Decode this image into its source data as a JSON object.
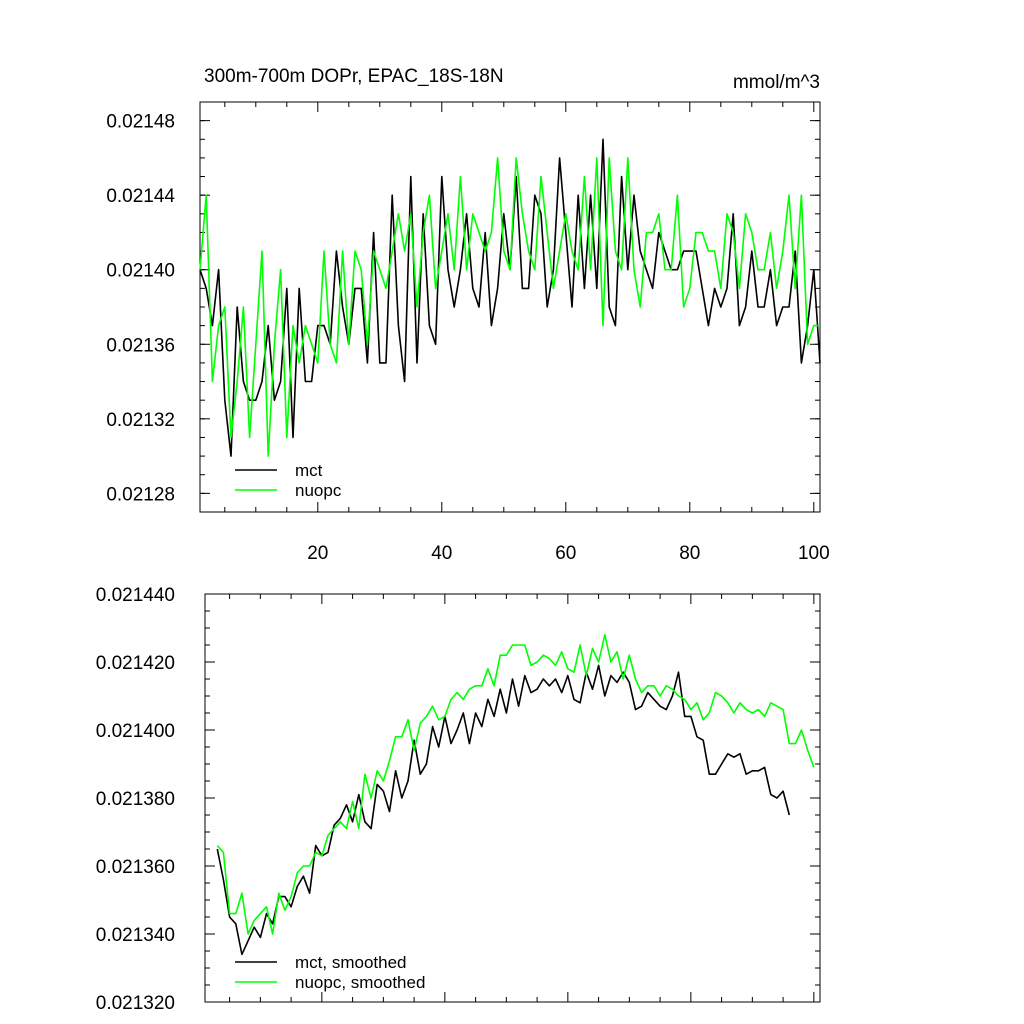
{
  "chart_data": [
    {
      "type": "line",
      "title": "300m-700m DOPr, EPAC_18S-18N",
      "units": "mmol/m^3",
      "xlim": [
        1,
        101
      ],
      "ylim": [
        0.02127,
        0.02149
      ],
      "x_ticks": [
        20,
        40,
        60,
        80,
        100
      ],
      "y_ticks": [
        0.02128,
        0.02132,
        0.02136,
        0.0214,
        0.02144,
        0.02148
      ],
      "y_tick_labels": [
        "0.02128",
        "0.02132",
        "0.02136",
        "0.02140",
        "0.02144",
        "0.02148"
      ],
      "legend_position": "bottom-left",
      "x_start": 1,
      "series": [
        {
          "name": "mct",
          "color": "#000000",
          "values": [
            0.0214,
            0.02139,
            0.02137,
            0.0214,
            0.02133,
            0.0213,
            0.02138,
            0.02134,
            0.02133,
            0.02133,
            0.02134,
            0.02137,
            0.02133,
            0.02134,
            0.02139,
            0.02131,
            0.02139,
            0.02134,
            0.02134,
            0.02137,
            0.02137,
            0.02136,
            0.02141,
            0.02138,
            0.02136,
            0.02139,
            0.02139,
            0.02135,
            0.02142,
            0.02135,
            0.02135,
            0.02144,
            0.02137,
            0.02134,
            0.02145,
            0.02135,
            0.02143,
            0.02137,
            0.02136,
            0.02145,
            0.0214,
            0.02138,
            0.0214,
            0.02143,
            0.02139,
            0.02138,
            0.02142,
            0.02137,
            0.02139,
            0.02143,
            0.0214,
            0.02145,
            0.02139,
            0.02139,
            0.02144,
            0.02143,
            0.02138,
            0.0214,
            0.02146,
            0.02142,
            0.02138,
            0.02144,
            0.02139,
            0.02144,
            0.02139,
            0.02147,
            0.02138,
            0.02137,
            0.02145,
            0.0214,
            0.02144,
            0.02141,
            0.0214,
            0.02139,
            0.02142,
            0.02141,
            0.0214,
            0.0214,
            0.02141,
            0.02141,
            0.02141,
            0.02139,
            0.02137,
            0.02139,
            0.02138,
            0.02139,
            0.02143,
            0.02137,
            0.02138,
            0.02141,
            0.02138,
            0.02138,
            0.0214,
            0.02137,
            0.02138,
            0.02138,
            0.02141,
            0.02135,
            0.02137,
            0.0214,
            0.02135
          ]
        },
        {
          "name": "nuopc",
          "color": "#00ff00",
          "values": [
            0.0214,
            0.02144,
            0.02134,
            0.02137,
            0.02138,
            0.02131,
            0.02134,
            0.02138,
            0.02131,
            0.02136,
            0.02141,
            0.0213,
            0.02136,
            0.0214,
            0.02131,
            0.02137,
            0.02135,
            0.02137,
            0.02136,
            0.02135,
            0.02141,
            0.02136,
            0.02135,
            0.02141,
            0.02136,
            0.02141,
            0.0214,
            0.02136,
            0.02141,
            0.0214,
            0.02139,
            0.02141,
            0.02143,
            0.02141,
            0.02143,
            0.02138,
            0.02142,
            0.02144,
            0.02139,
            0.02141,
            0.02143,
            0.0214,
            0.02145,
            0.0214,
            0.02143,
            0.02142,
            0.02141,
            0.02142,
            0.02146,
            0.02141,
            0.0214,
            0.02146,
            0.02143,
            0.02141,
            0.0214,
            0.02145,
            0.02142,
            0.02139,
            0.02141,
            0.02143,
            0.02141,
            0.0214,
            0.02145,
            0.0214,
            0.02146,
            0.02137,
            0.02146,
            0.02141,
            0.0214,
            0.02146,
            0.0214,
            0.02138,
            0.02142,
            0.02142,
            0.02143,
            0.0214,
            0.0214,
            0.02144,
            0.02138,
            0.02139,
            0.02142,
            0.02142,
            0.02141,
            0.02141,
            0.02139,
            0.02143,
            0.02142,
            0.02139,
            0.02143,
            0.02142,
            0.0214,
            0.0214,
            0.02142,
            0.02139,
            0.02141,
            0.02144,
            0.02139,
            0.02144,
            0.02136,
            0.02137,
            0.02137
          ]
        }
      ]
    },
    {
      "type": "line",
      "title": "",
      "xlim": [
        1,
        101
      ],
      "ylim": [
        0.02132,
        0.02144
      ],
      "y_ticks": [
        0.02132,
        0.02134,
        0.02136,
        0.02138,
        0.0214,
        0.02142,
        0.02144
      ],
      "y_tick_labels": [
        "0.021320",
        "0.021340",
        "0.021360",
        "0.021380",
        "0.021400",
        "0.021420",
        "0.021440"
      ],
      "legend_position": "bottom-left",
      "x_start": 3,
      "series": [
        {
          "name": "mct, smoothed",
          "color": "#000000",
          "values": [
            0.021365,
            0.021356,
            0.021345,
            0.021343,
            0.021334,
            0.021338,
            0.021342,
            0.021339,
            0.021346,
            0.021343,
            0.021351,
            0.021351,
            0.021348,
            0.021354,
            0.021357,
            0.021352,
            0.021366,
            0.021363,
            0.021364,
            0.021372,
            0.021374,
            0.021378,
            0.021373,
            0.021381,
            0.021373,
            0.021371,
            0.021384,
            0.021382,
            0.021376,
            0.021388,
            0.02138,
            0.021385,
            0.021397,
            0.021387,
            0.02139,
            0.021401,
            0.021395,
            0.021404,
            0.021396,
            0.0214,
            0.021405,
            0.021396,
            0.021405,
            0.021401,
            0.021409,
            0.021404,
            0.021412,
            0.021405,
            0.021415,
            0.021407,
            0.021416,
            0.021411,
            0.021412,
            0.021415,
            0.021413,
            0.021415,
            0.021411,
            0.021416,
            0.021409,
            0.021408,
            0.021417,
            0.021412,
            0.021419,
            0.02141,
            0.021416,
            0.021414,
            0.021417,
            0.021414,
            0.021406,
            0.021407,
            0.021411,
            0.021409,
            0.021407,
            0.021406,
            0.02141,
            0.021417,
            0.021404,
            0.021404,
            0.021398,
            0.021397,
            0.021387,
            0.021387,
            0.02139,
            0.021393,
            0.021392,
            0.021393,
            0.021387,
            0.021388,
            0.021388,
            0.021389,
            0.021381,
            0.02138,
            0.021382,
            0.021375
          ]
        },
        {
          "name": "nuopc, smoothed",
          "color": "#00ff00",
          "values": [
            0.021366,
            0.021364,
            0.021346,
            0.021346,
            0.021352,
            0.02134,
            0.021344,
            0.021346,
            0.021348,
            0.02134,
            0.021352,
            0.021347,
            0.021351,
            0.021358,
            0.02136,
            0.02136,
            0.021364,
            0.021363,
            0.021369,
            0.021371,
            0.021373,
            0.021371,
            0.021379,
            0.021371,
            0.021387,
            0.02138,
            0.021388,
            0.021385,
            0.021391,
            0.021398,
            0.021398,
            0.021403,
            0.021394,
            0.021402,
            0.021404,
            0.021407,
            0.021403,
            0.021404,
            0.021409,
            0.021411,
            0.021409,
            0.021412,
            0.021413,
            0.021413,
            0.021418,
            0.021413,
            0.021422,
            0.021422,
            0.021425,
            0.021425,
            0.021425,
            0.021419,
            0.02142,
            0.021422,
            0.021421,
            0.021419,
            0.021423,
            0.021418,
            0.021417,
            0.021425,
            0.021416,
            0.021424,
            0.02142,
            0.021428,
            0.02142,
            0.021423,
            0.021415,
            0.021422,
            0.021415,
            0.021411,
            0.021413,
            0.021413,
            0.02141,
            0.021413,
            0.021412,
            0.02141,
            0.021409,
            0.021406,
            0.021408,
            0.021403,
            0.021405,
            0.021411,
            0.02141,
            0.021408,
            0.021405,
            0.021408,
            0.021406,
            0.021405,
            0.021406,
            0.021404,
            0.021408,
            0.021407,
            0.021406,
            0.021396,
            0.021396,
            0.0214,
            0.021394,
            0.021389
          ]
        }
      ]
    }
  ]
}
